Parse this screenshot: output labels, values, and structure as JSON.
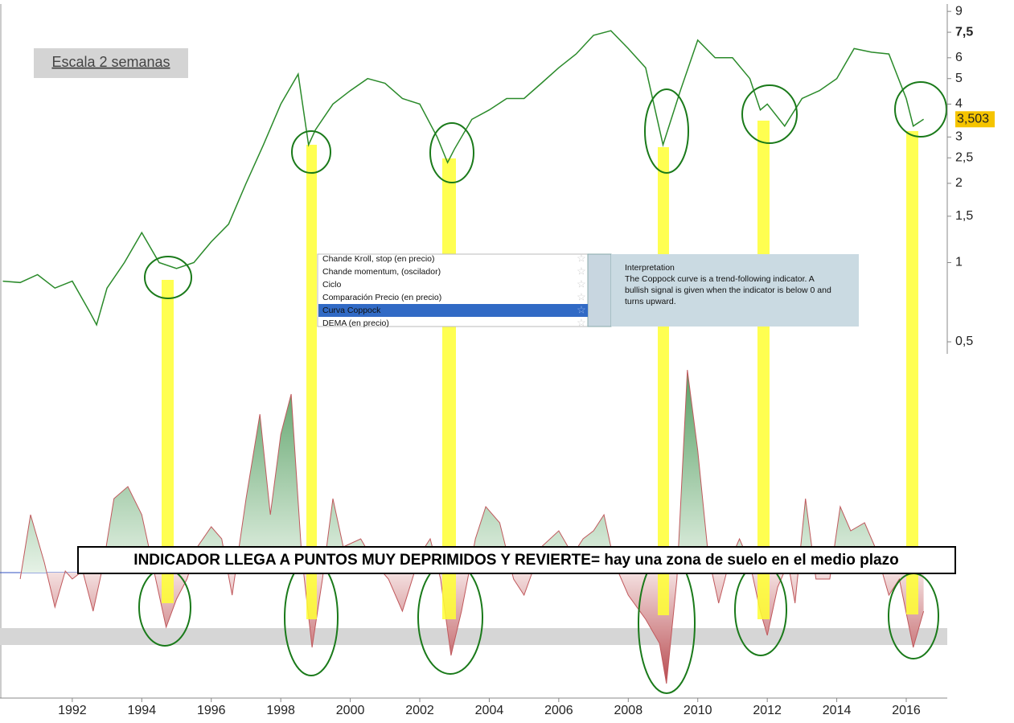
{
  "chart_data": [
    {
      "type": "line",
      "name": "price",
      "log_scale": true,
      "color": "#2a8a2a",
      "xlim": [
        1989.92,
        2017.18
      ],
      "ylim": [
        0.45,
        9.6
      ],
      "yticks": [
        9,
        {
          "value": 7.5,
          "label": "7,5"
        },
        6,
        5,
        4,
        3,
        {
          "value": 2.5,
          "label": "2,5"
        },
        2,
        {
          "value": 1.5,
          "label": "1,5"
        },
        1,
        {
          "value": 0.5,
          "label": "0,5"
        }
      ],
      "x": [
        1990.0,
        1990.5,
        1991.0,
        1991.5,
        1992.0,
        1992.5,
        1992.7,
        1993.0,
        1993.5,
        1994.0,
        1994.5,
        1995.0,
        1995.5,
        1996.0,
        1996.5,
        1997.0,
        1997.5,
        1998.0,
        1998.5,
        1998.8,
        1999.0,
        1999.5,
        2000.0,
        2000.5,
        2001.0,
        2001.5,
        2002.0,
        2002.5,
        2002.8,
        2003.0,
        2003.5,
        2004.0,
        2004.5,
        2005.0,
        2005.5,
        2006.0,
        2006.5,
        2007.0,
        2007.5,
        2008.0,
        2008.5,
        2009.0,
        2009.5,
        2010.0,
        2010.5,
        2011.0,
        2011.5,
        2011.8,
        2012.0,
        2012.5,
        2013.0,
        2013.5,
        2014.0,
        2014.5,
        2015.0,
        2015.5,
        2016.0,
        2016.2,
        2016.5
      ],
      "values": [
        0.85,
        0.84,
        0.9,
        0.8,
        0.85,
        0.65,
        0.58,
        0.8,
        1.0,
        1.3,
        1.0,
        0.95,
        1.0,
        1.2,
        1.4,
        2.0,
        2.8,
        4.0,
        5.2,
        2.8,
        3.2,
        4.0,
        4.5,
        5.0,
        4.8,
        4.2,
        4.0,
        3.0,
        2.4,
        2.7,
        3.5,
        3.8,
        4.2,
        4.2,
        4.8,
        5.5,
        6.2,
        7.3,
        7.6,
        6.5,
        5.5,
        2.8,
        4.5,
        7.0,
        6.0,
        6.0,
        5.0,
        3.8,
        4.0,
        3.3,
        4.2,
        4.5,
        5.0,
        6.5,
        6.3,
        6.2,
        4.2,
        3.3,
        3.503
      ],
      "last_price": {
        "value": 3.503,
        "label": "3,503"
      }
    },
    {
      "type": "area",
      "name": "coppock",
      "color_up": "#6fb27a",
      "color_down": "#c0595d",
      "xlim": [
        1989.92,
        2017.18
      ],
      "ylim": [
        -156,
        267
      ],
      "xticks": [
        1992,
        1994,
        1996,
        1998,
        2000,
        2002,
        2004,
        2006,
        2008,
        2010,
        2012,
        2014,
        2016
      ],
      "x": [
        1990.5,
        1990.8,
        1991.2,
        1991.5,
        1991.8,
        1992.0,
        1992.3,
        1992.6,
        1992.9,
        1993.2,
        1993.6,
        1994.0,
        1994.3,
        1994.7,
        1995.0,
        1995.3,
        1995.6,
        1996.0,
        1996.3,
        1996.6,
        1997.0,
        1997.4,
        1997.7,
        1998.0,
        1998.3,
        1998.6,
        1998.9,
        1999.2,
        1999.5,
        1999.8,
        2000.3,
        2000.7,
        2001.1,
        2001.5,
        2002.0,
        2002.3,
        2002.6,
        2002.9,
        2003.2,
        2003.6,
        2003.9,
        2004.3,
        2004.7,
        2005.0,
        2005.5,
        2006.0,
        2006.4,
        2006.7,
        2007.0,
        2007.3,
        2007.6,
        2008.0,
        2008.5,
        2008.9,
        2009.1,
        2009.4,
        2009.7,
        2010.0,
        2010.3,
        2010.6,
        2010.9,
        2011.2,
        2011.5,
        2011.8,
        2012.0,
        2012.3,
        2012.6,
        2012.8,
        2013.1,
        2013.4,
        2013.8,
        2014.1,
        2014.4,
        2014.8,
        2015.1,
        2015.5,
        2015.8,
        2016.2,
        2016.5
      ],
      "values": [
        -8,
        72,
        12,
        -43,
        2,
        -8,
        2,
        -48,
        12,
        92,
        107,
        72,
        12,
        -68,
        -33,
        -8,
        32,
        57,
        42,
        -28,
        92,
        197,
        72,
        172,
        222,
        22,
        -93,
        -8,
        92,
        32,
        42,
        12,
        -8,
        -48,
        22,
        42,
        -8,
        -103,
        -48,
        42,
        82,
        62,
        -8,
        -28,
        32,
        52,
        22,
        42,
        52,
        72,
        12,
        -28,
        -58,
        -88,
        -138,
        -8,
        252,
        152,
        22,
        -38,
        12,
        42,
        12,
        -48,
        -78,
        -18,
        12,
        -38,
        92,
        -8,
        -8,
        82,
        52,
        62,
        32,
        -28,
        -8,
        -93,
        -48
      ]
    }
  ],
  "annotations": {
    "scale_label": "Escala 2 semanas",
    "banner": "INDICADOR LLEGA A PUNTOS MUY DEPRIMIDOS Y REVIERTE= hay una zona de suelo en el medio plazo"
  },
  "menu": {
    "items": [
      "Chande Kroll, stop (en precio)",
      "Chande momentum, (oscilador)",
      "Ciclo",
      "Comparación Precio (en precio)",
      "Curva Coppock",
      "DEMA (en precio)"
    ]
  },
  "tooltip": {
    "title": "Interpretation",
    "lines": [
      "The Coppock curve is a trend-following indicator. A",
      "bullish signal is given when the indicator is below 0 and",
      "turns upward."
    ]
  }
}
